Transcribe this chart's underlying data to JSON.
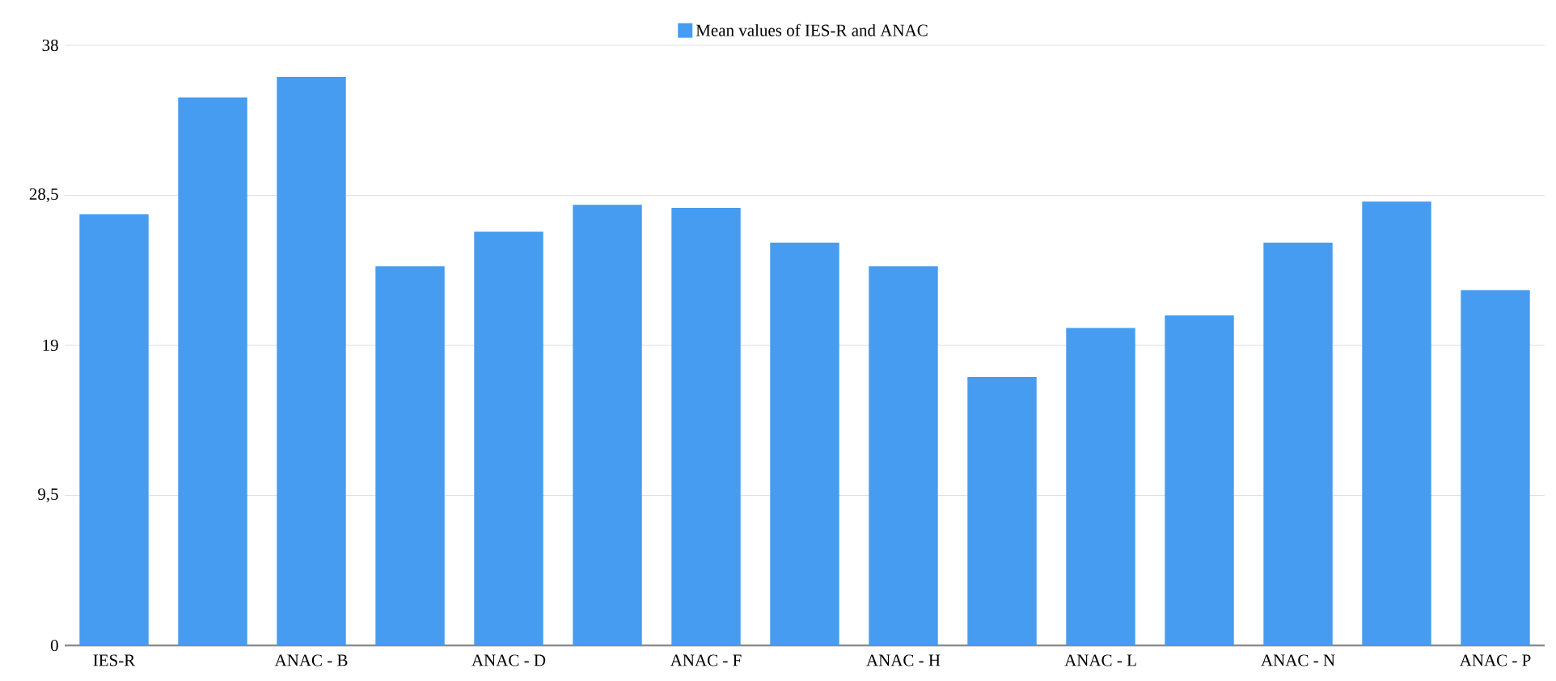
{
  "chart_data": {
    "type": "bar",
    "categories": [
      "IES-R",
      null,
      "ANAC - B",
      null,
      "ANAC - D",
      null,
      "ANAC - F",
      null,
      "ANAC - H",
      null,
      "ANAC - L",
      null,
      "ANAC - N",
      null,
      "ANAC - P"
    ],
    "series": [
      {
        "name": "Mean values of IES-R and ANAC",
        "color": "#459cf1",
        "values": [
          27.3,
          34.7,
          36.0,
          24.0,
          26.2,
          27.9,
          27.7,
          25.5,
          24.0,
          17.0,
          20.1,
          20.9,
          25.5,
          28.1,
          22.5
        ]
      }
    ],
    "ylim": [
      0,
      38
    ],
    "yticks": [
      0,
      {
        "value": 9.5,
        "label": "9,5"
      },
      19,
      {
        "value": 28.5,
        "label": "28,5"
      },
      38
    ],
    "grid": "y",
    "legend": "top"
  }
}
